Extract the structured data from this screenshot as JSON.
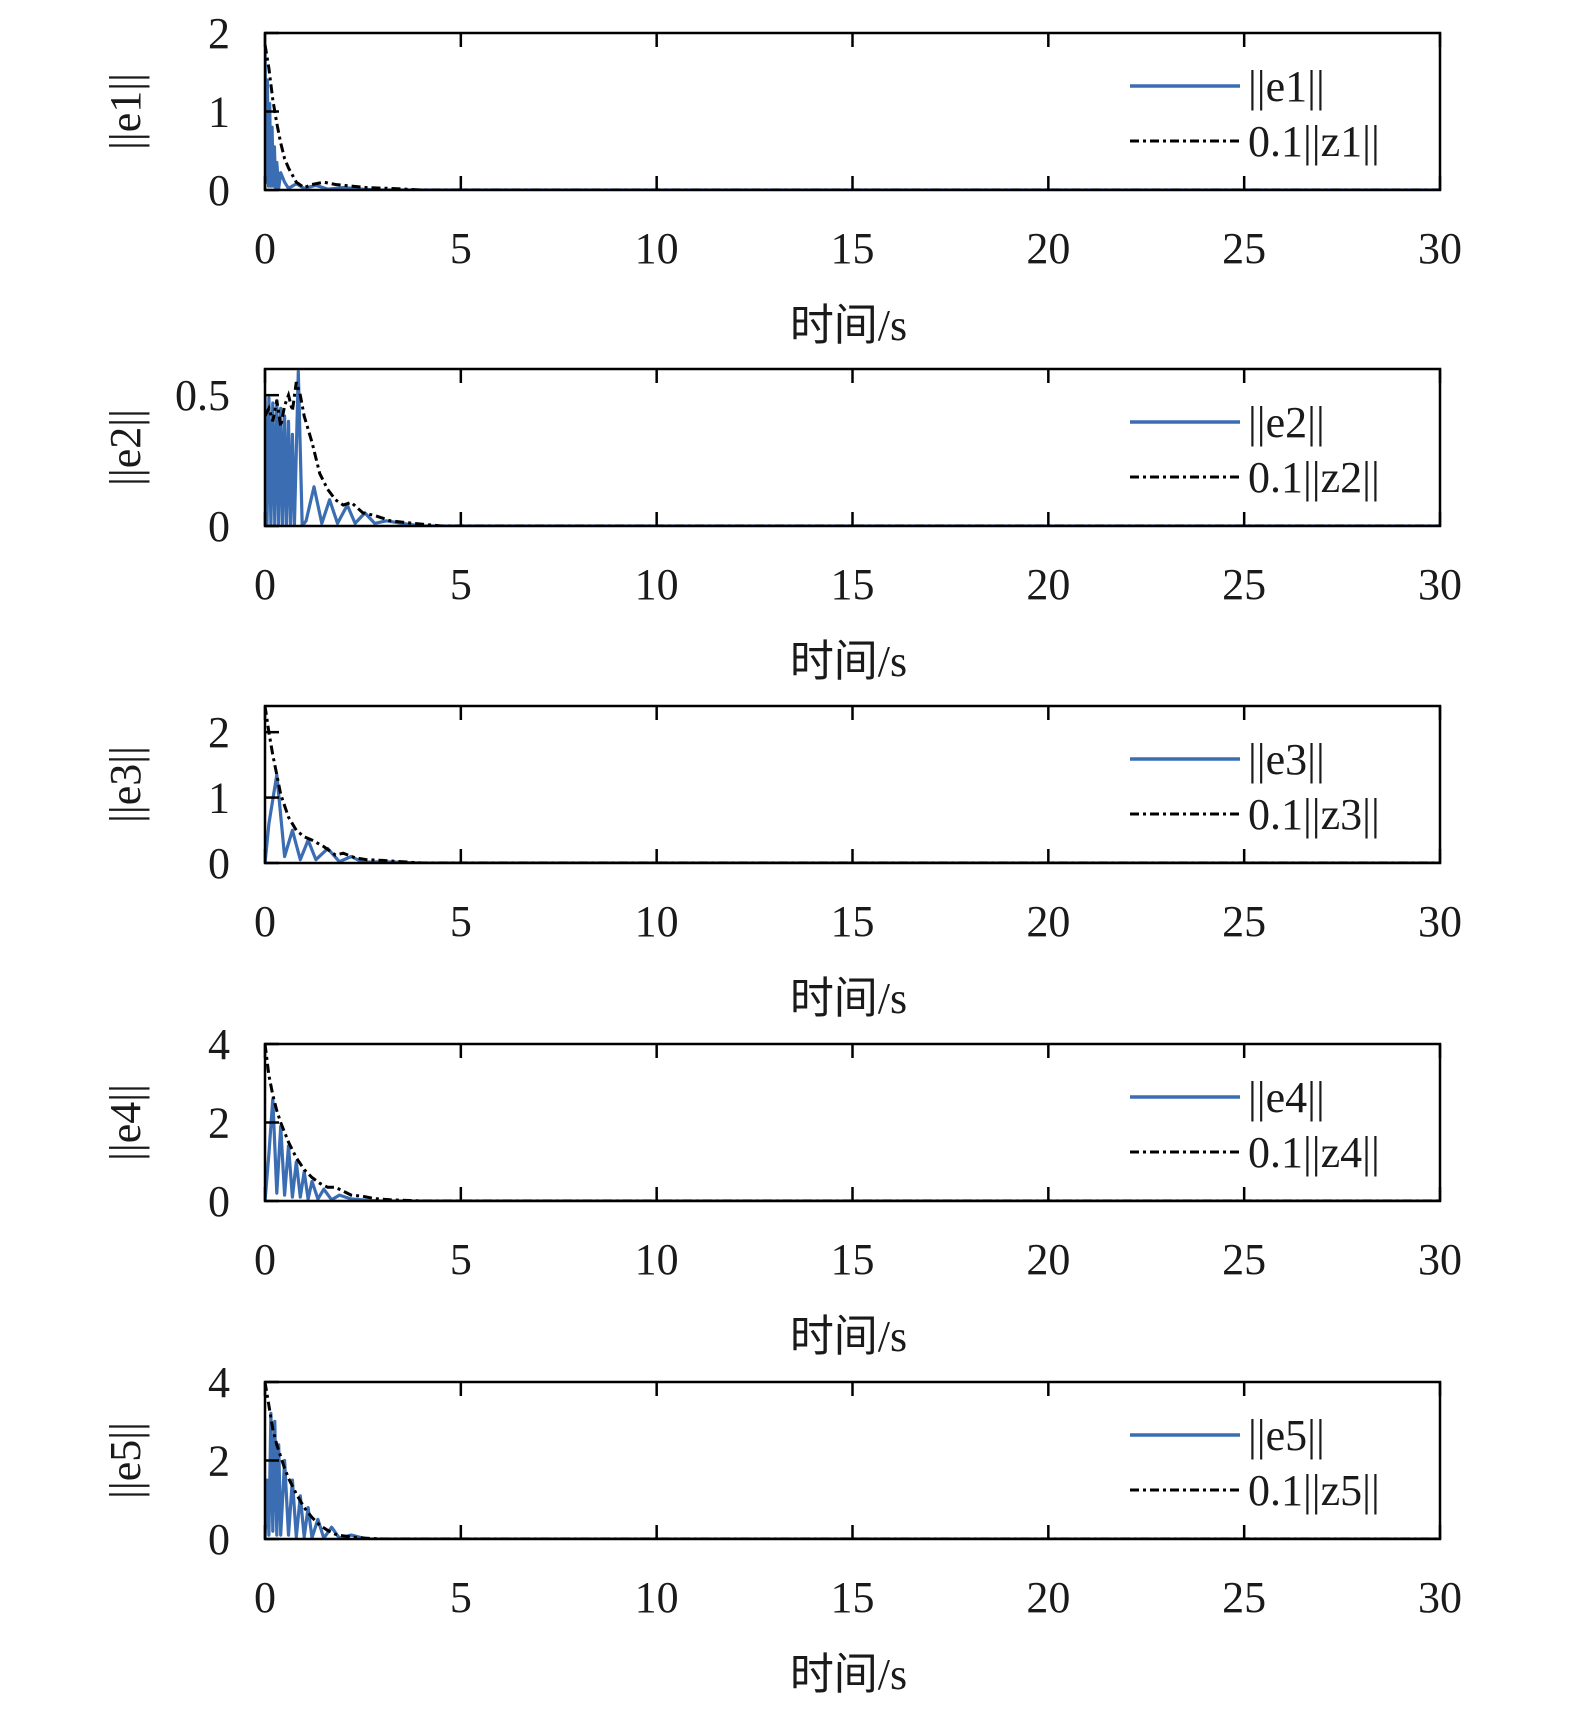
{
  "colors": {
    "error_series": "#3b6db3",
    "bound_series": "#000000",
    "axes": "#000000"
  },
  "chart_data": [
    {
      "type": "line",
      "xlabel": "时间/s",
      "ylabel": "||e1||",
      "xlim": [
        0,
        30
      ],
      "ylim": [
        0,
        2
      ],
      "xticks": [
        "0",
        "5",
        "10",
        "15",
        "20",
        "25",
        "30"
      ],
      "yticks": [
        "0",
        "1",
        "2"
      ],
      "grid": false,
      "legend_position": "top-right",
      "series": [
        {
          "name": "||e1||",
          "style": "solid",
          "x": [
            0,
            0.03,
            0.06,
            0.09,
            0.12,
            0.15,
            0.18,
            0.21,
            0.24,
            0.27,
            0.3,
            0.35,
            0.4,
            0.5,
            0.6,
            0.8,
            1.0,
            1.3,
            1.6,
            2.0,
            2.5,
            3.0,
            4.0,
            30
          ],
          "y": [
            1.85,
            0.1,
            1.4,
            0.05,
            1.1,
            0.05,
            0.8,
            0.05,
            0.55,
            0.03,
            0.35,
            0.02,
            0.22,
            0.1,
            0.02,
            0.08,
            0.02,
            0.06,
            0.01,
            0.03,
            0.01,
            0.0,
            0.0,
            0.0
          ]
        },
        {
          "name": "0.1||z1||",
          "style": "dashdot",
          "x": [
            0,
            0.1,
            0.2,
            0.3,
            0.4,
            0.5,
            0.6,
            0.8,
            1.0,
            1.2,
            1.5,
            1.8,
            2.2,
            2.6,
            3.2,
            4.0,
            30
          ],
          "y": [
            1.85,
            1.55,
            1.15,
            0.85,
            0.6,
            0.4,
            0.28,
            0.1,
            0.03,
            0.07,
            0.1,
            0.07,
            0.05,
            0.03,
            0.02,
            0.0,
            0.0
          ]
        }
      ]
    },
    {
      "type": "line",
      "xlabel": "时间/s",
      "ylabel": "||e2||",
      "xlim": [
        0,
        30
      ],
      "ylim": [
        0,
        0.6
      ],
      "xticks": [
        "0",
        "5",
        "10",
        "15",
        "20",
        "25",
        "30"
      ],
      "yticks": [
        "0",
        "0.5"
      ],
      "grid": false,
      "legend_position": "top-right",
      "series": [
        {
          "name": "||e2||",
          "style": "solid",
          "x": [
            0,
            0.05,
            0.1,
            0.15,
            0.2,
            0.25,
            0.3,
            0.35,
            0.4,
            0.45,
            0.5,
            0.55,
            0.6,
            0.65,
            0.7,
            0.75,
            0.85,
            0.95,
            1.05,
            1.25,
            1.45,
            1.65,
            1.85,
            2.1,
            2.3,
            2.55,
            2.8,
            3.1,
            3.5,
            4.0,
            30
          ],
          "y": [
            0.5,
            0.0,
            0.49,
            0.0,
            0.47,
            0.0,
            0.48,
            0.0,
            0.45,
            0.0,
            0.42,
            0.0,
            0.4,
            0.0,
            0.35,
            0.0,
            0.59,
            0.0,
            0.02,
            0.15,
            0.01,
            0.1,
            0.01,
            0.08,
            0.01,
            0.05,
            0.01,
            0.02,
            0.01,
            0.0,
            0.0
          ]
        },
        {
          "name": "0.1||z2||",
          "style": "dashdot",
          "x": [
            0,
            0.1,
            0.2,
            0.3,
            0.4,
            0.5,
            0.6,
            0.7,
            0.8,
            0.9,
            1.0,
            1.2,
            1.4,
            1.6,
            1.8,
            2.0,
            2.2,
            2.5,
            2.8,
            3.2,
            3.8,
            4.5,
            30
          ],
          "y": [
            0.42,
            0.45,
            0.4,
            0.48,
            0.38,
            0.46,
            0.5,
            0.44,
            0.55,
            0.5,
            0.42,
            0.32,
            0.2,
            0.14,
            0.1,
            0.08,
            0.09,
            0.05,
            0.04,
            0.02,
            0.01,
            0.0,
            0.0
          ]
        }
      ]
    },
    {
      "type": "line",
      "xlabel": "时间/s",
      "ylabel": "||e3||",
      "xlim": [
        0,
        30
      ],
      "ylim": [
        0,
        2.4
      ],
      "xticks": [
        "0",
        "5",
        "10",
        "15",
        "20",
        "25",
        "30"
      ],
      "yticks": [
        "0",
        "1",
        "2"
      ],
      "grid": false,
      "legend_position": "top-right",
      "series": [
        {
          "name": "||e3||",
          "style": "solid",
          "x": [
            0,
            0.1,
            0.3,
            0.5,
            0.7,
            0.9,
            1.1,
            1.3,
            1.6,
            1.9,
            2.2,
            2.5,
            3.0,
            4.0,
            30
          ],
          "y": [
            0.0,
            0.6,
            1.35,
            0.1,
            0.5,
            0.05,
            0.35,
            0.05,
            0.22,
            0.02,
            0.1,
            0.01,
            0.02,
            0.0,
            0.0
          ]
        },
        {
          "name": "0.1||z3||",
          "style": "dashdot",
          "x": [
            0,
            0.1,
            0.2,
            0.3,
            0.4,
            0.6,
            0.8,
            1.0,
            1.2,
            1.5,
            1.8,
            2.0,
            2.3,
            2.6,
            3.0,
            3.5,
            4.0,
            30
          ],
          "y": [
            2.4,
            2.0,
            1.65,
            1.35,
            1.05,
            0.7,
            0.5,
            0.4,
            0.35,
            0.25,
            0.12,
            0.15,
            0.08,
            0.05,
            0.04,
            0.02,
            0.0,
            0.0
          ]
        }
      ]
    },
    {
      "type": "line",
      "xlabel": "时间/s",
      "ylabel": "||e4||",
      "xlim": [
        0,
        30
      ],
      "ylim": [
        0,
        4
      ],
      "xticks": [
        "0",
        "5",
        "10",
        "15",
        "20",
        "25",
        "30"
      ],
      "yticks": [
        "0",
        "2",
        "4"
      ],
      "grid": false,
      "legend_position": "top-right",
      "series": [
        {
          "name": "||e4||",
          "style": "solid",
          "x": [
            0,
            0.1,
            0.2,
            0.3,
            0.4,
            0.5,
            0.6,
            0.7,
            0.8,
            0.9,
            1.0,
            1.1,
            1.2,
            1.35,
            1.5,
            1.7,
            1.9,
            2.2,
            2.6,
            3.0,
            30
          ],
          "y": [
            0.0,
            1.2,
            2.6,
            0.2,
            1.9,
            0.15,
            1.4,
            0.1,
            1.0,
            0.1,
            0.75,
            0.05,
            0.5,
            0.05,
            0.3,
            0.03,
            0.15,
            0.05,
            0.02,
            0.0,
            0.0
          ]
        },
        {
          "name": "0.1||z4||",
          "style": "dashdot",
          "x": [
            0,
            0.1,
            0.2,
            0.3,
            0.4,
            0.5,
            0.6,
            0.8,
            1.0,
            1.2,
            1.4,
            1.6,
            1.8,
            2.0,
            2.2,
            2.5,
            2.8,
            3.2,
            4.0,
            30
          ],
          "y": [
            4.0,
            3.2,
            2.7,
            2.3,
            2.0,
            1.75,
            1.5,
            1.1,
            0.8,
            0.6,
            0.45,
            0.35,
            0.35,
            0.25,
            0.15,
            0.12,
            0.06,
            0.03,
            0.0,
            0.0
          ]
        }
      ]
    },
    {
      "type": "line",
      "xlabel": "时间/s",
      "ylabel": "||e5||",
      "xlim": [
        0,
        30
      ],
      "ylim": [
        0,
        4
      ],
      "xticks": [
        "0",
        "5",
        "10",
        "15",
        "20",
        "25",
        "30"
      ],
      "yticks": [
        "0",
        "2",
        "4"
      ],
      "grid": false,
      "legend_position": "top-right",
      "series": [
        {
          "name": "||e5||",
          "style": "solid",
          "x": [
            0,
            0.05,
            0.1,
            0.15,
            0.2,
            0.25,
            0.3,
            0.35,
            0.4,
            0.5,
            0.6,
            0.7,
            0.8,
            0.9,
            1.0,
            1.1,
            1.2,
            1.35,
            1.5,
            1.7,
            1.9,
            2.2,
            2.6,
            30
          ],
          "y": [
            0.0,
            1.5,
            0.1,
            3.2,
            0.2,
            3.0,
            0.1,
            2.4,
            0.1,
            2.0,
            0.1,
            1.5,
            0.05,
            1.1,
            0.05,
            0.8,
            0.03,
            0.5,
            0.02,
            0.3,
            0.02,
            0.1,
            0.0,
            0.0
          ]
        },
        {
          "name": "0.1||z5||",
          "style": "dashdot",
          "x": [
            0,
            0.1,
            0.2,
            0.3,
            0.4,
            0.5,
            0.6,
            0.8,
            1.0,
            1.2,
            1.4,
            1.6,
            1.8,
            2.0,
            2.3,
            2.6,
            3.0,
            30
          ],
          "y": [
            4.0,
            3.4,
            2.8,
            2.4,
            2.1,
            1.8,
            1.55,
            1.15,
            0.8,
            0.55,
            0.35,
            0.22,
            0.12,
            0.08,
            0.04,
            0.02,
            0.0,
            0.0
          ]
        }
      ]
    }
  ]
}
